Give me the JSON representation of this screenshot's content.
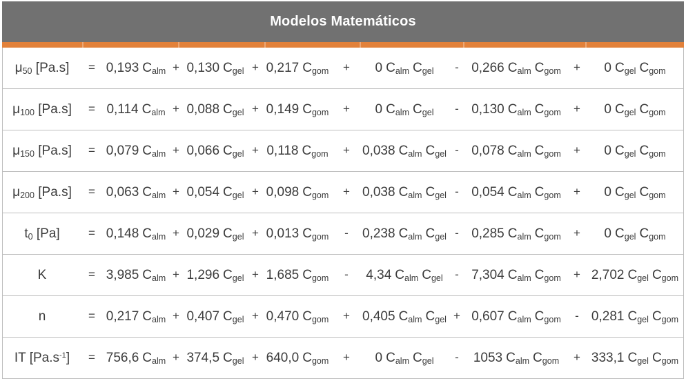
{
  "colors": {
    "header_bg": "#717171",
    "accent_orange": "#e2813a",
    "text": "#3c3c3c",
    "border": "#bdbdbd",
    "title_text": "#ffffff"
  },
  "header": {
    "title": "Modelos Matemáticos"
  },
  "table": {
    "equals": "=",
    "term_vars": [
      [
        {
          "base": "C",
          "sub": "alm"
        }
      ],
      [
        {
          "base": "C",
          "sub": "gel"
        }
      ],
      [
        {
          "base": "C",
          "sub": "gom"
        }
      ],
      [
        {
          "base": "C",
          "sub": "alm"
        },
        {
          "base": "C",
          "sub": "gel"
        }
      ],
      [
        {
          "base": "C",
          "sub": "alm"
        },
        {
          "base": "C",
          "sub": "gom"
        }
      ],
      [
        {
          "base": "C",
          "sub": "gel"
        },
        {
          "base": "C",
          "sub": "gom"
        }
      ]
    ],
    "rows": [
      {
        "lhs": [
          {
            "t": "μ"
          },
          {
            "t": "50",
            "sub": true
          },
          {
            "t": " [Pa.s]"
          }
        ],
        "coefs": [
          "0,193",
          "0,130",
          "0,217",
          "0",
          "0,266",
          "0"
        ],
        "signs": [
          "+",
          "+",
          "+",
          "-",
          "+"
        ]
      },
      {
        "lhs": [
          {
            "t": "μ"
          },
          {
            "t": "100",
            "sub": true
          },
          {
            "t": " [Pa.s]"
          }
        ],
        "coefs": [
          "0,114",
          "0,088",
          "0,149",
          "0",
          "0,130",
          "0"
        ],
        "signs": [
          "+",
          "+",
          "+",
          "-",
          "+"
        ]
      },
      {
        "lhs": [
          {
            "t": "μ"
          },
          {
            "t": "150",
            "sub": true
          },
          {
            "t": " [Pa.s]"
          }
        ],
        "coefs": [
          "0,079",
          "0,066",
          "0,118",
          "0,038",
          "0,078",
          "0"
        ],
        "signs": [
          "+",
          "+",
          "+",
          "-",
          "+"
        ]
      },
      {
        "lhs": [
          {
            "t": "μ"
          },
          {
            "t": "200",
            "sub": true
          },
          {
            "t": " [Pa.s]"
          }
        ],
        "coefs": [
          "0,063",
          "0,054",
          "0,098",
          "0,038",
          "0,054",
          "0"
        ],
        "signs": [
          "+",
          "+",
          "+",
          "-",
          "+"
        ]
      },
      {
        "lhs": [
          {
            "t": "t"
          },
          {
            "t": "0",
            "sub": true
          },
          {
            "t": " [Pa]"
          }
        ],
        "coefs": [
          "0,148",
          "0,029",
          "0,013",
          "0,238",
          "0,285",
          "0"
        ],
        "signs": [
          "+",
          "+",
          "-",
          "-",
          "+"
        ]
      },
      {
        "lhs": [
          {
            "t": "K"
          }
        ],
        "coefs": [
          "3,985",
          "1,296",
          "1,685",
          "4,34",
          "7,304",
          "2,702"
        ],
        "signs": [
          "+",
          "+",
          "-",
          "-",
          "+"
        ]
      },
      {
        "lhs": [
          {
            "t": "n"
          }
        ],
        "coefs": [
          "0,217",
          "0,407",
          "0,470",
          "0,405",
          "0,607",
          "0,281"
        ],
        "signs": [
          "+",
          "+",
          "+",
          "+",
          "-"
        ]
      },
      {
        "lhs": [
          {
            "t": "IT [Pa.s"
          },
          {
            "t": "-1",
            "sup": true
          },
          {
            "t": "]"
          }
        ],
        "coefs": [
          "756,6",
          "374,5",
          "640,0",
          "0",
          "1053",
          "333,1"
        ],
        "signs": [
          "+",
          "+",
          "+",
          "-",
          "+"
        ]
      }
    ]
  }
}
